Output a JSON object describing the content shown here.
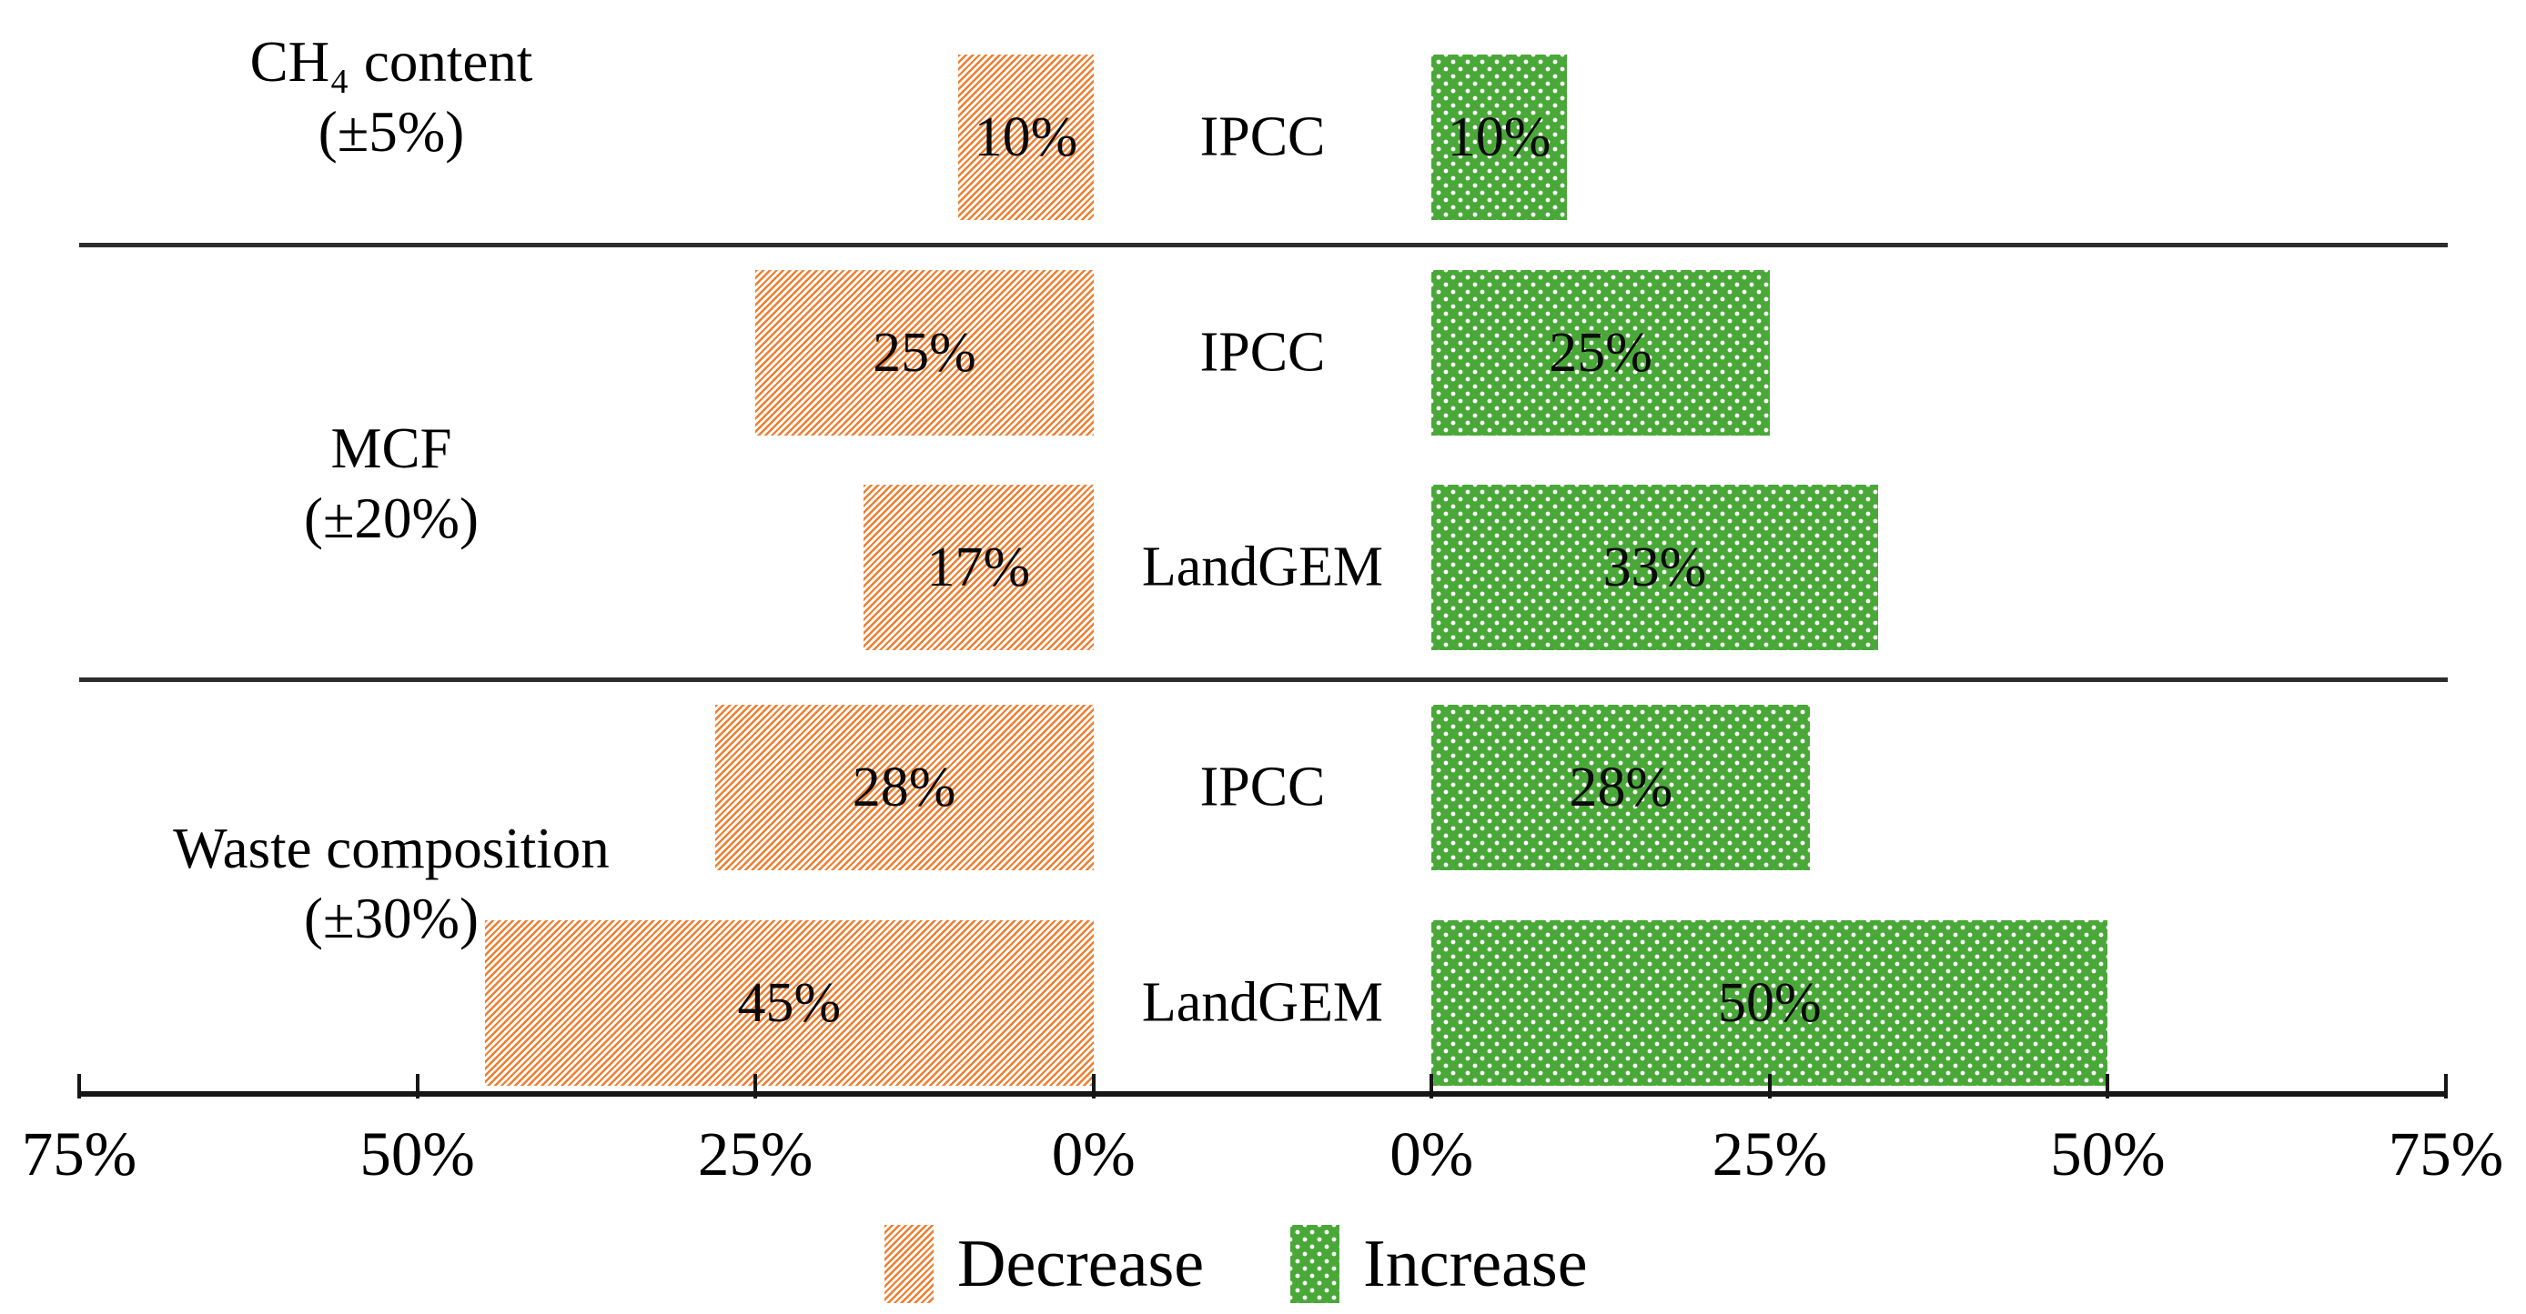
{
  "chart_data": {
    "type": "bar",
    "variant": "tornado-sensitivity",
    "title": "",
    "xlabel": "",
    "ylabel": "",
    "axis": {
      "tick_labels": [
        "75%",
        "50%",
        "25%",
        "0%",
        "0%",
        "25%",
        "50%",
        "75%"
      ],
      "left_range": [
        75,
        0
      ],
      "right_range": [
        0,
        75
      ],
      "unit": "%",
      "grid": false
    },
    "groups": [
      {
        "category": "CH₄ content",
        "uncertainty": "(±5%)",
        "rows": [
          {
            "model": "IPCC",
            "decrease": 10,
            "increase": 10
          }
        ]
      },
      {
        "category": "MCF",
        "uncertainty": "(±20%)",
        "rows": [
          {
            "model": "IPCC",
            "decrease": 25,
            "increase": 25
          },
          {
            "model": "LandGEM",
            "decrease": 17,
            "increase": 33
          }
        ]
      },
      {
        "category": "Waste composition",
        "uncertainty": "(±30%)",
        "rows": [
          {
            "model": "IPCC",
            "decrease": 28,
            "increase": 28
          },
          {
            "model": "LandGEM",
            "decrease": 45,
            "increase": 50
          }
        ]
      }
    ],
    "legend": [
      {
        "label": "Decrease",
        "color": "#EF7E30",
        "pattern": "orange-diagonal-hatch"
      },
      {
        "label": "Increase",
        "color": "#4AA839",
        "pattern": "green-white-dots"
      }
    ]
  }
}
